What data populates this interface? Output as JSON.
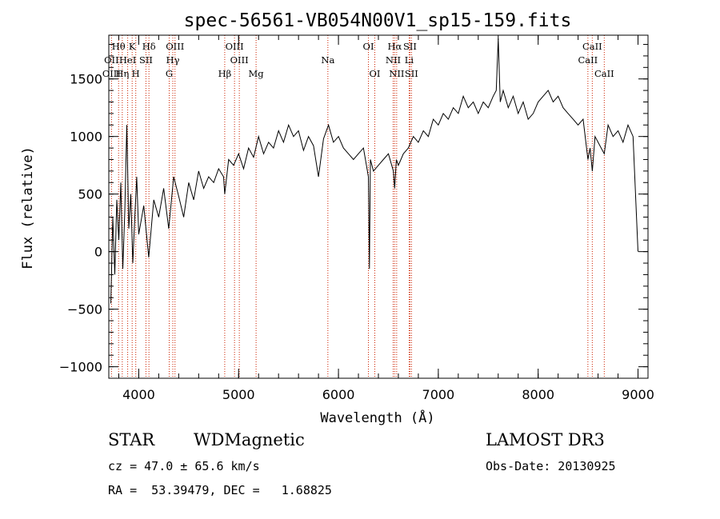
{
  "chart_data": {
    "type": "line",
    "title": "spec-56561-VB054N00V1_sp15-159.fits",
    "xlabel": "Wavelength (Å)",
    "ylabel": "Flux (relative)",
    "xlim": [
      3700,
      9100
    ],
    "ylim": [
      -1100,
      1880
    ],
    "xticks": [
      4000,
      5000,
      6000,
      7000,
      8000,
      9000
    ],
    "xtick_labels": [
      "4000",
      "5000",
      "6000",
      "7000",
      "8000",
      "9000"
    ],
    "yticks": [
      -1000,
      -500,
      0,
      500,
      1000,
      1500
    ],
    "ytick_labels": [
      "−1000",
      "−500",
      "0",
      "500",
      "1000",
      "1500"
    ],
    "series": [
      {
        "name": "flux",
        "x": [
          3720,
          3740,
          3760,
          3780,
          3800,
          3820,
          3840,
          3860,
          3880,
          3900,
          3920,
          3940,
          3960,
          3980,
          4000,
          4050,
          4100,
          4150,
          4200,
          4250,
          4300,
          4350,
          4400,
          4450,
          4500,
          4550,
          4600,
          4650,
          4700,
          4750,
          4800,
          4850,
          4861,
          4900,
          4950,
          5000,
          5050,
          5100,
          5150,
          5200,
          5250,
          5300,
          5350,
          5400,
          5450,
          5500,
          5550,
          5600,
          5650,
          5700,
          5750,
          5800,
          5850,
          5900,
          5950,
          6000,
          6050,
          6100,
          6150,
          6200,
          6250,
          6300,
          6310,
          6320,
          6350,
          6400,
          6450,
          6500,
          6550,
          6563,
          6580,
          6600,
          6650,
          6700,
          6750,
          6800,
          6850,
          6900,
          6950,
          7000,
          7050,
          7100,
          7150,
          7200,
          7250,
          7300,
          7350,
          7400,
          7450,
          7500,
          7550,
          7580,
          7600,
          7620,
          7650,
          7700,
          7750,
          7800,
          7850,
          7900,
          7950,
          8000,
          8050,
          8100,
          8150,
          8200,
          8250,
          8300,
          8350,
          8400,
          8450,
          8498,
          8520,
          8542,
          8570,
          8600,
          8662,
          8700,
          8750,
          8800,
          8850,
          8900,
          8950,
          9000
        ],
        "y": [
          -450,
          300,
          -200,
          450,
          100,
          600,
          -150,
          350,
          1100,
          200,
          500,
          -100,
          300,
          650,
          150,
          400,
          -50,
          450,
          300,
          550,
          200,
          650,
          480,
          300,
          600,
          450,
          700,
          550,
          650,
          600,
          720,
          650,
          500,
          800,
          750,
          850,
          720,
          900,
          820,
          1000,
          850,
          950,
          900,
          1050,
          950,
          1100,
          1000,
          1050,
          880,
          1000,
          920,
          650,
          980,
          1100,
          950,
          1000,
          900,
          850,
          800,
          850,
          900,
          650,
          -150,
          800,
          700,
          750,
          800,
          850,
          700,
          550,
          800,
          750,
          850,
          900,
          1000,
          950,
          1050,
          1000,
          1150,
          1100,
          1200,
          1150,
          1250,
          1200,
          1350,
          1250,
          1300,
          1200,
          1300,
          1250,
          1350,
          1400,
          1850,
          1300,
          1400,
          1250,
          1350,
          1200,
          1300,
          1150,
          1200,
          1300,
          1350,
          1400,
          1300,
          1350,
          1250,
          1200,
          1150,
          1100,
          1150,
          800,
          900,
          700,
          1000,
          950,
          850,
          1100,
          1000,
          1050,
          950,
          1100,
          1000,
          0
        ]
      }
    ],
    "spectral_lines": [
      {
        "label": "Hθ",
        "wavelength": 3798,
        "row": 1
      },
      {
        "label": "OII",
        "wavelength": 3727,
        "row": 2
      },
      {
        "label": "OIII",
        "wavelength": 3727,
        "row": 3
      },
      {
        "label": "Hη",
        "wavelength": 3835,
        "row": 3
      },
      {
        "label": "K",
        "wavelength": 3934,
        "row": 1
      },
      {
        "label": "H",
        "wavelength": 3970,
        "row": 3
      },
      {
        "label": "HeI",
        "wavelength": 3889,
        "row": 2
      },
      {
        "label": "SII",
        "wavelength": 4072,
        "row": 2
      },
      {
        "label": "Hδ",
        "wavelength": 4102,
        "row": 1
      },
      {
        "label": "OIII",
        "wavelength": 4363,
        "row": 1
      },
      {
        "label": "Hγ",
        "wavelength": 4341,
        "row": 2
      },
      {
        "label": "G",
        "wavelength": 4305,
        "row": 3
      },
      {
        "label": "OIII",
        "wavelength": 4959,
        "row": 1
      },
      {
        "label": "OIII",
        "wavelength": 5007,
        "row": 2
      },
      {
        "label": "Hβ",
        "wavelength": 4861,
        "row": 3
      },
      {
        "label": "Mg",
        "wavelength": 5175,
        "row": 3
      },
      {
        "label": "Na",
        "wavelength": 5894,
        "row": 2
      },
      {
        "label": "OI",
        "wavelength": 6300,
        "row": 1
      },
      {
        "label": "OI",
        "wavelength": 6364,
        "row": 3
      },
      {
        "label": "Hα",
        "wavelength": 6563,
        "row": 1
      },
      {
        "label": "SII",
        "wavelength": 6716,
        "row": 1
      },
      {
        "label": "NII",
        "wavelength": 6548,
        "row": 2
      },
      {
        "label": "Li",
        "wavelength": 6708,
        "row": 2
      },
      {
        "label": "NII",
        "wavelength": 6583,
        "row": 3
      },
      {
        "label": "SII",
        "wavelength": 6731,
        "row": 3
      },
      {
        "label": "CaII",
        "wavelength": 8542,
        "row": 1
      },
      {
        "label": "CaII",
        "wavelength": 8498,
        "row": 2
      },
      {
        "label": "CaII",
        "wavelength": 8662,
        "row": 3
      }
    ],
    "line_color": "#cc2200"
  },
  "info": {
    "class": "STAR",
    "subclass": "WDMagnetic",
    "survey": "LAMOST DR3",
    "cz": "cz = 47.0 ± 65.6 km/s",
    "obs_date": "Obs-Date: 20130925",
    "coords": "RA =  53.39479, DEC =   1.68825"
  }
}
